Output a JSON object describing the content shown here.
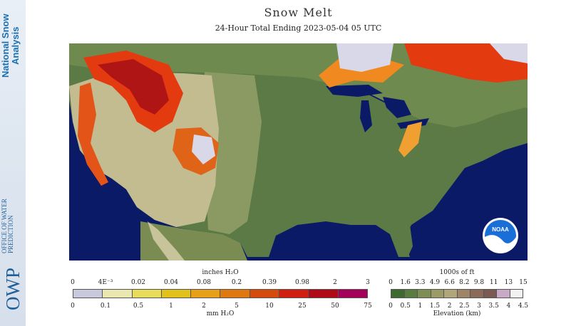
{
  "branding": {
    "program_line1": "National Snow",
    "program_line2": "Analysis",
    "office_lines": "OFFICE OF WATER PREDICTION",
    "office_acronym": "OWP"
  },
  "header": {
    "title": "Snow Melt",
    "subtitle": "24-Hour Total Ending 2023-05-04 05 UTC"
  },
  "map": {
    "logo_text": "NOAA",
    "colors": {
      "water": "#0b1a66",
      "lowland": "#5b7a45",
      "plains": "#8a9a62",
      "highland": "#c2bc90",
      "melt_low": "#f08a20",
      "melt_mid": "#e33a10",
      "melt_high": "#b01515",
      "snow_none": "#d8d8e8"
    }
  },
  "melt_legend": {
    "top_unit": "inches H₂O",
    "bottom_unit": "mm H₂O",
    "top_ticks": [
      "0",
      "4E⁻³",
      "0.02",
      "0.04",
      "0.08",
      "0.2",
      "0.39",
      "0.98",
      "2",
      "3"
    ],
    "bottom_ticks": [
      "0",
      "0.1",
      "0.5",
      "1",
      "2",
      "5",
      "10",
      "25",
      "50",
      "75"
    ],
    "swatches": [
      "#c9c9dd",
      "#eae8b0",
      "#e8dc5a",
      "#e2c21a",
      "#e8a018",
      "#e07810",
      "#d64a0c",
      "#d01e10",
      "#b00a18",
      "#a5005a"
    ]
  },
  "elevation_legend": {
    "top_unit": "1000s of ft",
    "bottom_unit": "Elevation (km)",
    "top_ticks": [
      "0",
      "1.6",
      "3.3",
      "4.9",
      "6.6",
      "8.2",
      "9.8",
      "11",
      "13",
      "15"
    ],
    "bottom_ticks": [
      "0",
      "0.5",
      "1",
      "1.5",
      "2",
      "2.5",
      "3",
      "3.5",
      "4",
      "4.5"
    ],
    "swatches": [
      "#3f6a2e",
      "#5a7d3f",
      "#7d8f55",
      "#9a9b66",
      "#b0a67a",
      "#a08468",
      "#8b6a5a",
      "#7a5a52",
      "#c8aac8",
      "#f2f2f2"
    ]
  }
}
